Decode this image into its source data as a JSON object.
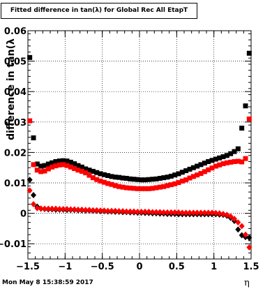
{
  "title": "Fitted difference in tan(λ) for Global Rec All EtapT",
  "timestamp": "Mon May  8 15:38:59 2017",
  "chart_data": {
    "type": "scatter",
    "title": "Fitted difference in tan(λ) for Global Rec All EtapT",
    "xlabel": "η",
    "ylabel": "difference in tan(λ",
    "xlim": [
      -1.5,
      1.5
    ],
    "ylim": [
      -0.015,
      0.06
    ],
    "grid": true,
    "xticks": [
      "−1.5",
      "−1",
      "−0.5",
      "0",
      "0.5",
      "1",
      "1.5"
    ],
    "yticks": [
      "−0.01",
      "0",
      "0.01",
      "0.02",
      "0.03",
      "0.04",
      "0.05",
      "0.06"
    ],
    "x": [
      -1.475,
      -1.425,
      -1.375,
      -1.325,
      -1.275,
      -1.225,
      -1.175,
      -1.125,
      -1.075,
      -1.025,
      -0.975,
      -0.925,
      -0.875,
      -0.825,
      -0.775,
      -0.725,
      -0.675,
      -0.625,
      -0.575,
      -0.525,
      -0.475,
      -0.425,
      -0.375,
      -0.325,
      -0.275,
      -0.225,
      -0.175,
      -0.125,
      -0.075,
      -0.025,
      0.025,
      0.075,
      0.125,
      0.175,
      0.225,
      0.275,
      0.325,
      0.375,
      0.425,
      0.475,
      0.525,
      0.575,
      0.625,
      0.675,
      0.725,
      0.775,
      0.825,
      0.875,
      0.925,
      0.975,
      1.025,
      1.075,
      1.125,
      1.175,
      1.225,
      1.275,
      1.325,
      1.375,
      1.425,
      1.475
    ],
    "series": [
      {
        "color": "#000000",
        "marker": "square",
        "values": [
          0.0512,
          0.0248,
          0.0162,
          0.0155,
          0.0157,
          0.0162,
          0.0166,
          0.017,
          0.0172,
          0.0173,
          0.0172,
          0.0168,
          0.0163,
          0.0157,
          0.0152,
          0.0146,
          0.0142,
          0.0138,
          0.0134,
          0.013,
          0.0127,
          0.0124,
          0.0121,
          0.0119,
          0.0118,
          0.0116,
          0.0115,
          0.0113,
          0.0112,
          0.0111,
          0.011,
          0.011,
          0.0111,
          0.0112,
          0.0113,
          0.0115,
          0.0117,
          0.0119,
          0.0122,
          0.0126,
          0.013,
          0.0135,
          0.014,
          0.0145,
          0.015,
          0.0155,
          0.016,
          0.0165,
          0.017,
          0.0174,
          0.0178,
          0.0182,
          0.0186,
          0.019,
          0.0196,
          0.0203,
          0.0212,
          0.028,
          0.0353,
          0.0526
        ]
      },
      {
        "color": "#ff0000",
        "marker": "square",
        "values": [
          0.0304,
          0.016,
          0.0142,
          0.0137,
          0.0139,
          0.0146,
          0.0152,
          0.0156,
          0.0159,
          0.016,
          0.0157,
          0.0152,
          0.0147,
          0.0142,
          0.0138,
          0.0133,
          0.0125,
          0.0117,
          0.0111,
          0.0106,
          0.0102,
          0.0098,
          0.0095,
          0.0091,
          0.0088,
          0.0086,
          0.0084,
          0.0083,
          0.0082,
          0.0081,
          0.0081,
          0.0081,
          0.0081,
          0.0082,
          0.0084,
          0.0086,
          0.0088,
          0.0091,
          0.0094,
          0.0097,
          0.0101,
          0.0106,
          0.011,
          0.0116,
          0.0121,
          0.0126,
          0.0131,
          0.0137,
          0.0143,
          0.0149,
          0.0155,
          0.0159,
          0.0163,
          0.0166,
          0.0168,
          0.017,
          0.0171,
          0.0169,
          0.018,
          0.031
        ]
      },
      {
        "color": "#000000",
        "marker": "diamond",
        "values": [
          0.011,
          0.006,
          0.0022,
          0.0015,
          0.0014,
          0.0013,
          0.0013,
          0.0012,
          0.0012,
          0.0012,
          0.0011,
          0.0011,
          0.0011,
          0.001,
          0.001,
          0.0009,
          0.0009,
          0.0008,
          0.0008,
          0.0007,
          0.0007,
          0.0006,
          0.0006,
          0.0005,
          0.0005,
          0.0004,
          0.0004,
          0.0003,
          0.0003,
          0.0002,
          0.0002,
          0.0001,
          0.0001,
          0.0,
          0.0,
          -0.0001,
          -0.0001,
          -0.0002,
          -0.0002,
          -0.0002,
          -0.0003,
          -0.0003,
          -0.0003,
          -0.0003,
          -0.0003,
          -0.0003,
          -0.0003,
          -0.0003,
          -0.0003,
          -0.0003,
          -0.0003,
          -0.0004,
          -0.0005,
          -0.0008,
          -0.0015,
          -0.0025,
          -0.0053,
          -0.0072,
          -0.0078,
          -0.008
        ]
      },
      {
        "color": "#ff0000",
        "marker": "diamond",
        "values": [
          0.0075,
          0.003,
          0.0017,
          0.0016,
          0.0015,
          0.0015,
          0.0015,
          0.0015,
          0.0014,
          0.0014,
          0.0014,
          0.0013,
          0.0013,
          0.0012,
          0.0012,
          0.0011,
          0.0011,
          0.001,
          0.001,
          0.0009,
          0.0009,
          0.0008,
          0.0008,
          0.0008,
          0.0007,
          0.0007,
          0.0006,
          0.0006,
          0.0006,
          0.0005,
          0.0005,
          0.0005,
          0.0005,
          0.0004,
          0.0004,
          0.0004,
          0.0003,
          0.0003,
          0.0003,
          0.0003,
          0.0003,
          0.0002,
          0.0002,
          0.0002,
          0.0002,
          0.0002,
          0.0002,
          0.0002,
          0.0002,
          0.0002,
          0.0001,
          0.0,
          -0.0002,
          -0.0005,
          -0.001,
          -0.0018,
          -0.003,
          -0.0042,
          -0.007,
          -0.0112
        ]
      }
    ]
  }
}
